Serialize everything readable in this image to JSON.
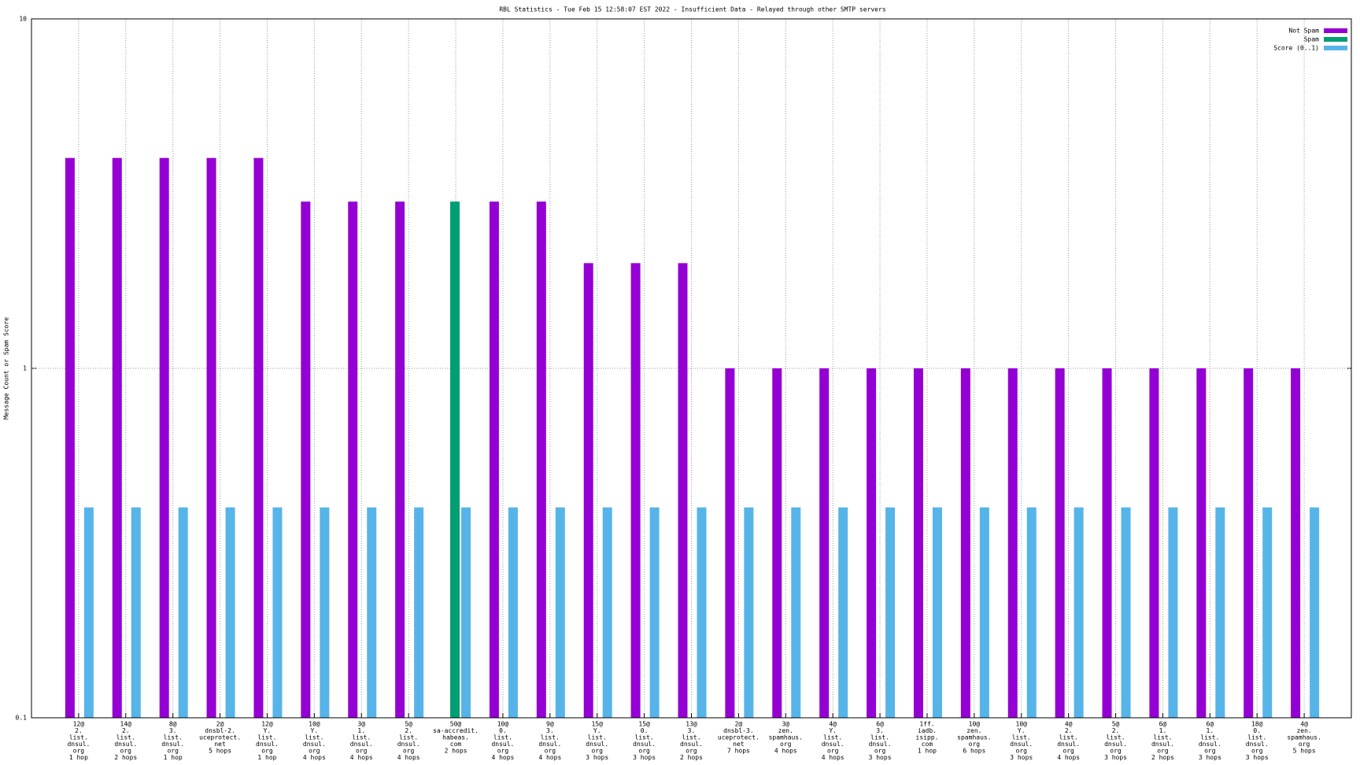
{
  "chart_data": {
    "type": "bar",
    "title": "RBL Statistics - Tue Feb 15 12:58:07 EST 2022 - Insufficient Data - Relayed through other SMTP servers",
    "y_label": "Message Count or Spam Score",
    "log_y": true,
    "grid": true,
    "legend": "top-right",
    "ylim": [
      0.1,
      10
    ],
    "yticks": [
      0.1,
      1,
      10
    ],
    "categories": [
      [
        "12@",
        "2.",
        "list.",
        "dnsul.",
        "org",
        "1 hop"
      ],
      [
        "14@",
        "2.",
        "list.",
        "dnsul.",
        "org",
        "2 hops"
      ],
      [
        "8@",
        "3.",
        "list.",
        "dnsul.",
        "org",
        "1 hop"
      ],
      [
        "2@",
        "dnsbl-2.",
        "uceprotect.",
        "net",
        "5 hops"
      ],
      [
        "12@",
        "Y.",
        "list.",
        "dnsul.",
        "org",
        "1 hop"
      ],
      [
        "10@",
        "Y.",
        "list.",
        "dnsul.",
        "org",
        "4 hops"
      ],
      [
        "3@",
        "1.",
        "list.",
        "dnsul.",
        "org",
        "4 hops"
      ],
      [
        "5@",
        "2.",
        "list.",
        "dnsul.",
        "org",
        "4 hops"
      ],
      [
        "50@",
        "sa-accredit.",
        "habeas.",
        "com",
        "2 hops"
      ],
      [
        "10@",
        "0.",
        "list.",
        "dnsul.",
        "org",
        "4 hops"
      ],
      [
        "9@",
        "3.",
        "list.",
        "dnsul.",
        "org",
        "4 hops"
      ],
      [
        "15@",
        "Y.",
        "list.",
        "dnsul.",
        "org",
        "3 hops"
      ],
      [
        "15@",
        "0.",
        "list.",
        "dnsul.",
        "org",
        "3 hops"
      ],
      [
        "13@",
        "3.",
        "list.",
        "dnsul.",
        "org",
        "2 hops"
      ],
      [
        "2@",
        "dnsbl-3.",
        "uceprotect.",
        "net",
        "7 hops"
      ],
      [
        "3@",
        "zen.",
        "spamhaus.",
        "org",
        "4 hops"
      ],
      [
        "4@",
        "Y.",
        "list.",
        "dnsul.",
        "org",
        "4 hops"
      ],
      [
        "6@",
        "3.",
        "list.",
        "dnsul.",
        "org",
        "3 hops"
      ],
      [
        "1ff.",
        "iadb.",
        "isipp.",
        "com",
        "1 hop"
      ],
      [
        "10@",
        "zen.",
        "spamhaus.",
        "org",
        "6 hops"
      ],
      [
        "10@",
        "Y.",
        "list.",
        "dnsul.",
        "org",
        "3 hops"
      ],
      [
        "4@",
        "2.",
        "list.",
        "dnsul.",
        "org",
        "4 hops"
      ],
      [
        "5@",
        "2.",
        "list.",
        "dnsul.",
        "org",
        "3 hops"
      ],
      [
        "6@",
        "1.",
        "list.",
        "dnsul.",
        "org",
        "2 hops"
      ],
      [
        "6@",
        "1.",
        "list.",
        "dnsul.",
        "org",
        "3 hops"
      ],
      [
        "18@",
        "0.",
        "list.",
        "dnsul.",
        "org",
        "3 hops"
      ],
      [
        "4@",
        "zen.",
        "spamhaus.",
        "org",
        "5 hops"
      ]
    ],
    "series": [
      {
        "name": "Not Spam",
        "color": "#9400d3",
        "values": [
          4,
          4,
          4,
          4,
          4,
          3,
          3,
          3,
          null,
          3,
          3,
          2,
          2,
          2,
          1,
          1,
          1,
          1,
          1,
          1,
          1,
          1,
          1,
          1,
          1,
          1,
          1
        ]
      },
      {
        "name": "Spam",
        "color": "#009e73",
        "values": [
          null,
          null,
          null,
          null,
          null,
          null,
          null,
          null,
          3,
          null,
          null,
          null,
          null,
          null,
          null,
          null,
          null,
          null,
          null,
          null,
          null,
          null,
          null,
          null,
          null,
          null,
          null
        ]
      },
      {
        "name": "Score (0..1)",
        "color": "#56b4e9",
        "values": [
          0.4,
          0.4,
          0.4,
          0.4,
          0.4,
          0.4,
          0.4,
          0.4,
          0.4,
          0.4,
          0.4,
          0.4,
          0.4,
          0.4,
          0.4,
          0.4,
          0.4,
          0.4,
          0.4,
          0.4,
          0.4,
          0.4,
          0.4,
          0.4,
          0.4,
          0.4,
          0.4
        ]
      }
    ]
  }
}
